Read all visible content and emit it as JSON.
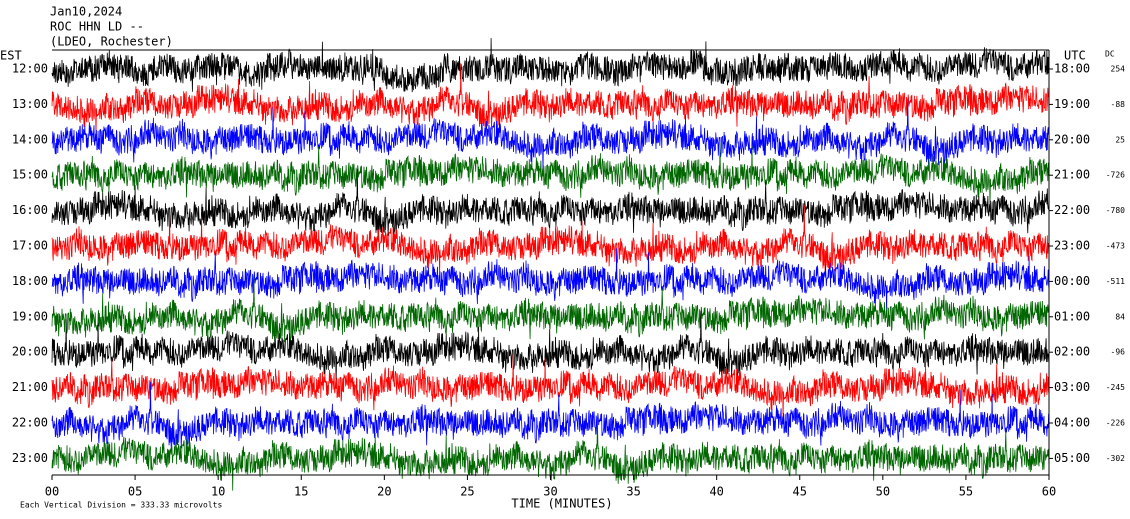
{
  "chart_data": {
    "type": "helicorder",
    "title_lines": [
      "Jan10,2024",
      "ROC HHN LD --",
      "(LDEO, Rochester)"
    ],
    "left_header": "EST",
    "right_header": "UTC",
    "dc_header": "DC",
    "rows_est": [
      "12:00",
      "13:00",
      "14:00",
      "15:00",
      "16:00",
      "17:00",
      "18:00",
      "19:00",
      "20:00",
      "21:00",
      "22:00",
      "23:00"
    ],
    "rows_utc": [
      "18:00",
      "19:00",
      "20:00",
      "21:00",
      "22:00",
      "23:00",
      "00:00",
      "01:00",
      "02:00",
      "03:00",
      "04:00",
      "05:00"
    ],
    "dc_values": [
      254,
      -88,
      25,
      -726,
      -780,
      -473,
      -511,
      84,
      -96,
      -245,
      -226,
      -302
    ],
    "trace_colors": [
      "#000000",
      "#ff0000",
      "#0000ff",
      "#006600"
    ],
    "xlim": [
      0,
      60
    ],
    "xticks": [
      {
        "value": 0,
        "label": "00"
      },
      {
        "value": 5,
        "label": "05"
      },
      10,
      15,
      20,
      25,
      30,
      35,
      40,
      45,
      50,
      55,
      60
    ],
    "xlabel": "TIME (MINUTES)",
    "footer": "Each Vertical Division =  333.33 microvolts"
  }
}
